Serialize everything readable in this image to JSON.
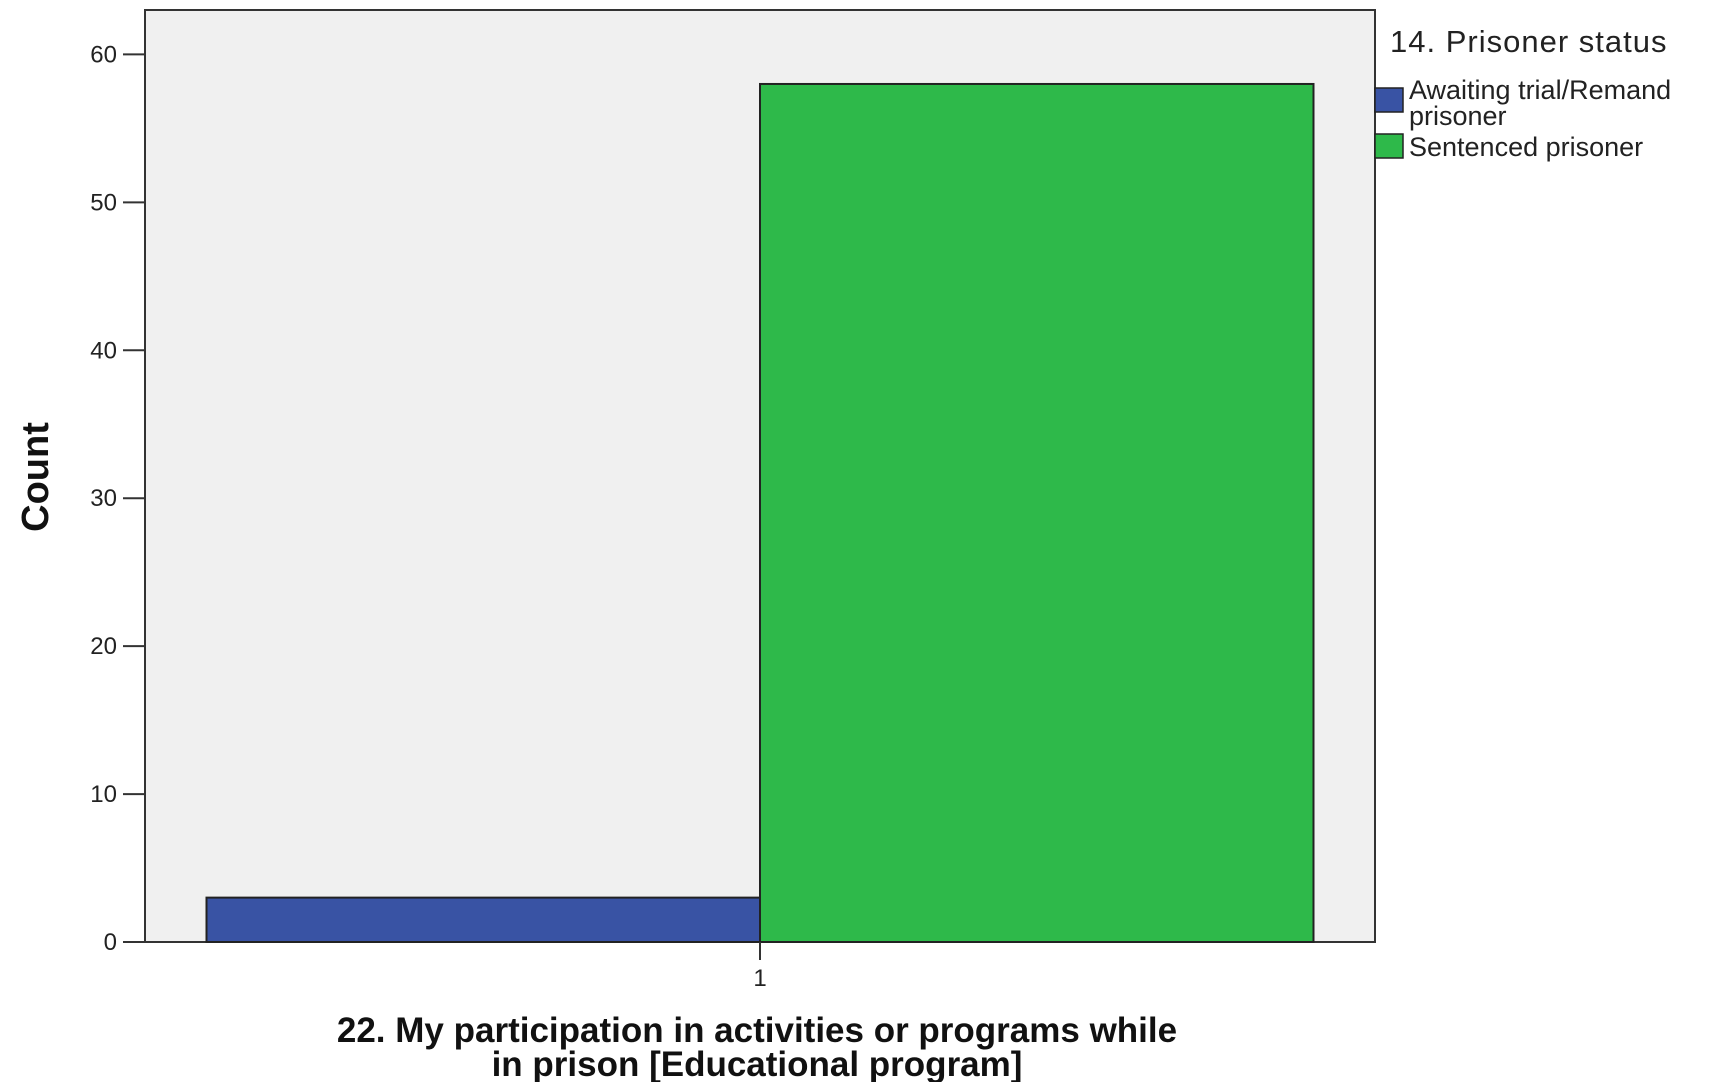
{
  "chart_data": {
    "type": "bar",
    "categories": [
      "1"
    ],
    "series": [
      {
        "name": "Awaiting trial/Remand prisoner",
        "values": [
          3
        ],
        "color": "#3953a4"
      },
      {
        "name": "Sentenced prisoner",
        "values": [
          58
        ],
        "color": "#2eb94a"
      }
    ],
    "title": "",
    "xlabel_lines": [
      "22. My participation in activities or programs while",
      "in prison [Educational program]"
    ],
    "ylabel": "Count",
    "ylim": [
      0,
      63
    ],
    "yticks": [
      0,
      10,
      20,
      30,
      40,
      50,
      60
    ],
    "grid": false,
    "legend": {
      "title": "14. Prisoner status",
      "placement": "right-top",
      "entries": [
        {
          "lines": [
            "Awaiting trial/Remand",
            "prisoner"
          ],
          "color": "#3953a4"
        },
        {
          "lines": [
            "Sentenced prisoner"
          ],
          "color": "#2eb94a"
        }
      ]
    },
    "plot_background": "#f0f0f0"
  }
}
